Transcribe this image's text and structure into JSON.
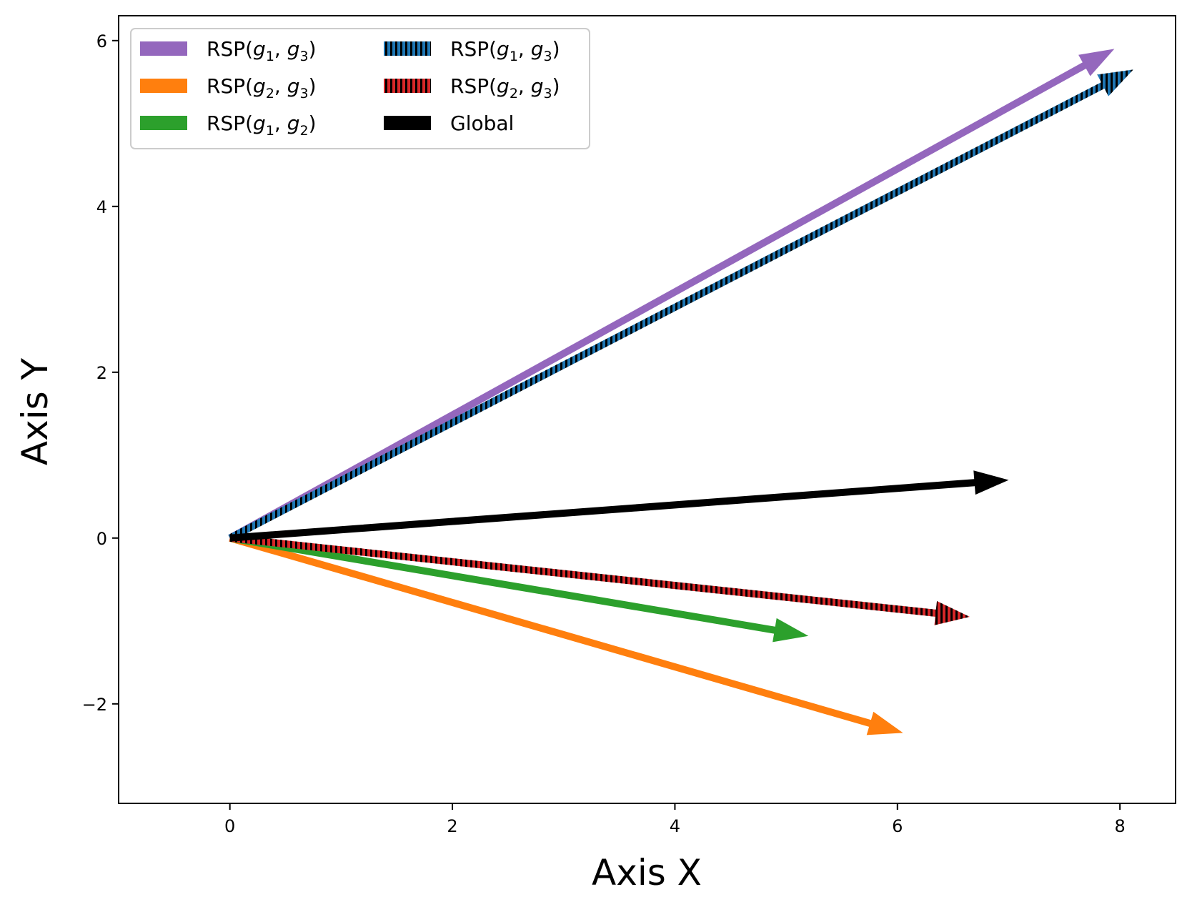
{
  "chart_data": {
    "type": "quiver",
    "xlabel": "Axis X",
    "ylabel": "Axis Y",
    "xlim": [
      -1,
      8.5
    ],
    "ylim": [
      -3.2,
      6.3
    ],
    "xticks": [
      0,
      2,
      4,
      6,
      8
    ],
    "yticks": [
      -2,
      0,
      2,
      4,
      6
    ],
    "ytick_labels": [
      "−2",
      "0",
      "2",
      "4",
      "6"
    ],
    "grid": false,
    "legend_position": "top-left",
    "legend_columns": 2,
    "series": [
      {
        "name": "RSP(g1, g3)",
        "label_main": "RSP(",
        "label_a": "g",
        "sub_a": "1",
        "label_b": "g",
        "sub_b": "3",
        "start": [
          0,
          0
        ],
        "end": [
          7.95,
          5.9
        ],
        "color": "#9467bd",
        "hatched": false
      },
      {
        "name": "RSP(g2, g3)",
        "label_main": "RSP(",
        "label_a": "g",
        "sub_a": "2",
        "label_b": "g",
        "sub_b": "3",
        "start": [
          0,
          0
        ],
        "end": [
          6.05,
          -2.35
        ],
        "color": "#ff7f0e",
        "hatched": false
      },
      {
        "name": "RSP(g1, g2)",
        "label_main": "RSP(",
        "label_a": "g",
        "sub_a": "1",
        "label_b": "g",
        "sub_b": "2",
        "start": [
          0,
          0
        ],
        "end": [
          5.2,
          -1.18
        ],
        "color": "#2ca02c",
        "hatched": false
      },
      {
        "name": "RSP(g1, g3)",
        "label_main": "RSP(",
        "label_a": "g",
        "sub_a": "1",
        "label_b": "g",
        "sub_b": "3",
        "start": [
          0,
          0
        ],
        "end": [
          8.12,
          5.65
        ],
        "color": "#1f77b4",
        "hatched": true
      },
      {
        "name": "RSP(g2, g3)",
        "label_main": "RSP(",
        "label_a": "g",
        "sub_a": "2",
        "label_b": "g",
        "sub_b": "3",
        "start": [
          0,
          0
        ],
        "end": [
          6.65,
          -0.95
        ],
        "color": "#d62728",
        "hatched": true
      },
      {
        "name": "Global",
        "label_main": "Global",
        "label_a": "",
        "sub_a": "",
        "label_b": "",
        "sub_b": "",
        "start": [
          0,
          0
        ],
        "end": [
          7.0,
          0.7
        ],
        "color": "#000000",
        "hatched": false
      }
    ]
  }
}
